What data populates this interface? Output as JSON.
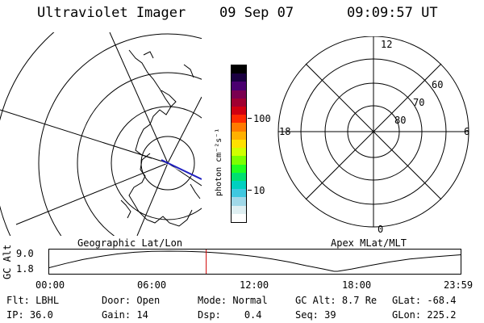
{
  "header": {
    "instrument": "Ultraviolet Imager",
    "date": "09 Sep 07",
    "time": "09:09:57 UT"
  },
  "left_panel": {
    "label": "Geographic Lat/Lon"
  },
  "colorbar": {
    "unit_label": "photon cm⁻²s⁻¹",
    "ticks": [
      "100",
      "10"
    ],
    "colors": [
      "#000000",
      "#1a0040",
      "#4a0070",
      "#7a0050",
      "#a00030",
      "#d00010",
      "#ff2a00",
      "#ff7a00",
      "#ffb000",
      "#ffe000",
      "#d0ff00",
      "#7cff00",
      "#20ff20",
      "#00e070",
      "#00d0c0",
      "#40c8e0",
      "#a0d8e8",
      "#dfeff2",
      "#ffffff"
    ]
  },
  "right_panel": {
    "label": "Apex MLat/MLT",
    "mlt_labels": {
      "top": "12",
      "right": "6",
      "bottom": "0",
      "left": "18"
    },
    "lat_labels": [
      "60",
      "70",
      "80"
    ]
  },
  "altitude_plot": {
    "ylabel": "GC Alt",
    "yticks": [
      "9.0",
      "1.8"
    ],
    "xticks": [
      "00:00",
      "06:00",
      "12:00",
      "18:00",
      "23:59"
    ],
    "series_color": "#000000",
    "marker_color": "#d00000",
    "current_time_hours": 9.17,
    "min_time_hours": 16.6,
    "altitude_re": [
      3.0,
      4.6,
      6.0,
      7.1,
      8.0,
      8.6,
      8.9,
      9.0,
      8.9,
      8.7,
      8.3,
      7.8,
      7.1,
      6.2,
      5.1,
      3.8,
      2.6,
      1.8,
      1.8,
      2.6,
      3.8,
      5.1,
      6.2,
      7.0,
      7.7
    ],
    "time_hours": [
      0,
      1,
      2,
      3,
      4,
      5,
      6,
      7,
      8,
      9,
      10,
      11,
      12,
      13,
      14,
      15,
      16,
      16.6,
      16.8,
      17.6,
      18.6,
      19.8,
      21,
      22.5,
      23.98
    ]
  },
  "status": {
    "row1": [
      {
        "label": "Flt:",
        "value": "LBHL"
      },
      {
        "label": "Door:",
        "value": "Open"
      },
      {
        "label": "Mode:",
        "value": "Normal"
      },
      {
        "label": "GC Alt:",
        "value": "8.7 Re"
      },
      {
        "label": "GLat:",
        "value": "-68.4"
      }
    ],
    "row2": [
      {
        "label": "IP:",
        "value": "36.0"
      },
      {
        "label": "Gain:",
        "value": "14"
      },
      {
        "label": "Dsp:",
        "value": "0.4"
      },
      {
        "label": "Seq:",
        "value": "39"
      },
      {
        "label": "GLon:",
        "value": "225.2"
      }
    ]
  }
}
